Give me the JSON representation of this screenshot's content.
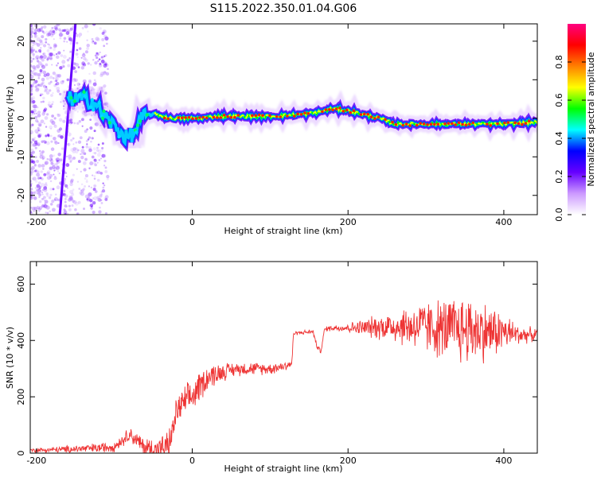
{
  "title": "S115.2022.350.01.04.G06",
  "chart_data": [
    {
      "type": "heatmap",
      "xlabel": "Height of straight line (km)",
      "ylabel": "Frequency (Hz)",
      "xlim": [
        -208,
        443
      ],
      "ylim": [
        -25,
        24.5
      ],
      "xticks": [
        "-200",
        "0",
        "200",
        "400"
      ],
      "yticks": [
        "-20",
        "-10",
        "0",
        "10",
        "20"
      ],
      "colorbar": {
        "label": "Normalized spectral amplitude",
        "range": [
          0,
          1
        ],
        "ticks": [
          "0.0",
          "0.2",
          "0.4",
          "0.6",
          "0.8"
        ],
        "colors": [
          "#ffffff",
          "#cc99ff",
          "#6600ff",
          "#0000ff",
          "#00ffff",
          "#00ff00",
          "#ffff00",
          "#ff8000",
          "#ff0000",
          "#ff0080"
        ]
      },
      "ridge": {
        "x": [
          -160,
          -140,
          -125,
          -115,
          -105,
          -95,
          -85,
          -75,
          -65,
          -55,
          -45,
          -30,
          -10,
          10,
          30,
          60,
          100,
          140,
          160,
          180,
          200,
          220,
          240,
          260,
          300,
          350,
          400,
          443
        ],
        "freq": [
          5,
          5,
          4,
          1,
          -1,
          -3,
          -5,
          -4,
          0,
          1,
          1,
          0,
          0,
          0,
          0.5,
          0.5,
          0.5,
          1,
          1.5,
          2.5,
          2,
          1,
          0,
          -1.5,
          -1.5,
          -1.5,
          -1.5,
          -1
        ]
      }
    },
    {
      "type": "line",
      "xlabel": "Height of straight line (km)",
      "ylabel": "SNR (10 * v/v)",
      "xlim": [
        -208,
        443
      ],
      "ylim": [
        0,
        680
      ],
      "xticks": [
        "-200",
        "0",
        "200",
        "400"
      ],
      "yticks": [
        "0",
        "200",
        "400",
        "600"
      ],
      "color": "#ee3333",
      "series": [
        {
          "x": [
            -208,
            -180,
            -150,
            -120,
            -100,
            -90,
            -80,
            -70,
            -60,
            -50,
            -40,
            -30,
            -25,
            -20,
            -10,
            0,
            10,
            20,
            40,
            60,
            80,
            100,
            110,
            120,
            128,
            130,
            140,
            150,
            155,
            160,
            165,
            170,
            180,
            200,
            220,
            250,
            280,
            300,
            320,
            340,
            360,
            380,
            400,
            420,
            443
          ],
          "y": [
            10,
            12,
            15,
            18,
            25,
            45,
            70,
            40,
            20,
            15,
            15,
            30,
            80,
            150,
            180,
            200,
            240,
            270,
            290,
            300,
            300,
            300,
            305,
            310,
            320,
            425,
            428,
            430,
            432,
            380,
            360,
            440,
            445,
            445,
            445,
            450,
            450,
            450,
            440,
            440,
            440,
            430,
            430,
            420,
            420
          ]
        }
      ],
      "noise": {
        "x": [
          -208,
          -90,
          -30,
          0,
          50,
          128,
          130,
          170,
          200,
          250,
          300,
          350,
          380,
          420,
          443
        ],
        "amp": [
          8,
          25,
          60,
          70,
          30,
          20,
          8,
          10,
          20,
          60,
          110,
          150,
          120,
          40,
          25
        ]
      }
    }
  ]
}
